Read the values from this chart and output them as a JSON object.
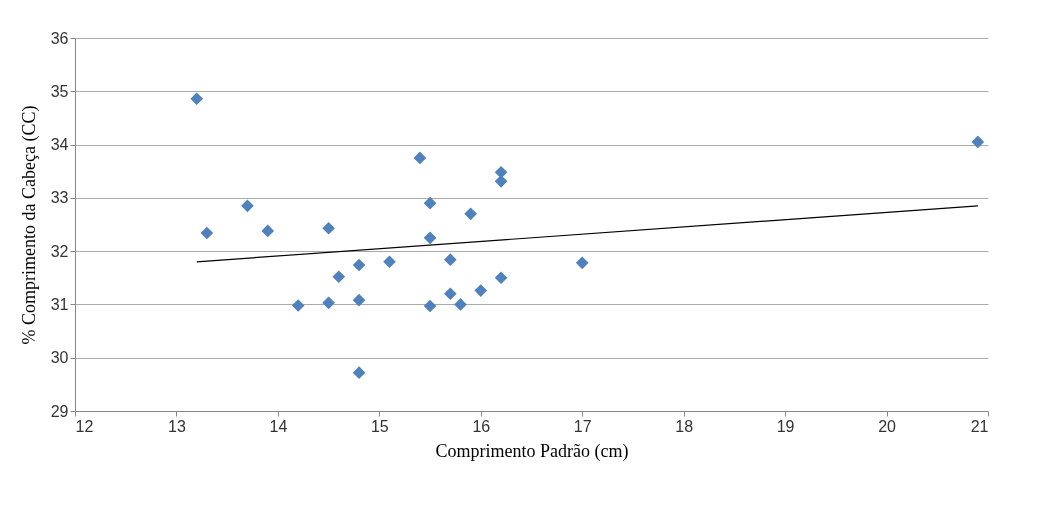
{
  "chart_data": {
    "type": "scatter",
    "xlabel": "Comprimento Padrão (cm)",
    "ylabel": "% Comprimento da Cabeça (CC)",
    "xlim": [
      12,
      21
    ],
    "xticks": [
      12,
      13,
      14,
      15,
      16,
      17,
      18,
      19,
      20,
      21
    ],
    "ylim": [
      29,
      36
    ],
    "yticks": [
      29,
      30,
      31,
      32,
      33,
      34,
      35,
      36
    ],
    "grid": "y",
    "series": [
      {
        "type": "scatter",
        "color": "#4f81bd",
        "marker": "diamond",
        "x": [
          13.2,
          13.3,
          13.7,
          13.9,
          14.2,
          14.5,
          14.5,
          14.6,
          14.8,
          14.8,
          14.8,
          15.1,
          15.4,
          15.5,
          15.5,
          15.5,
          15.7,
          15.7,
          15.8,
          15.9,
          16.0,
          16.2,
          16.2,
          16.2,
          17.0,
          20.9
        ],
        "values": [
          34.86,
          32.34,
          32.85,
          32.38,
          30.98,
          32.43,
          31.03,
          31.52,
          31.74,
          31.08,
          29.72,
          31.8,
          33.75,
          32.9,
          32.25,
          30.97,
          31.84,
          31.2,
          31.0,
          32.7,
          31.26,
          33.48,
          33.31,
          31.5,
          31.78,
          34.05
        ]
      },
      {
        "type": "line",
        "color": "#000000",
        "x": [
          13.2,
          20.9
        ],
        "values": [
          31.8,
          32.85
        ]
      }
    ]
  }
}
